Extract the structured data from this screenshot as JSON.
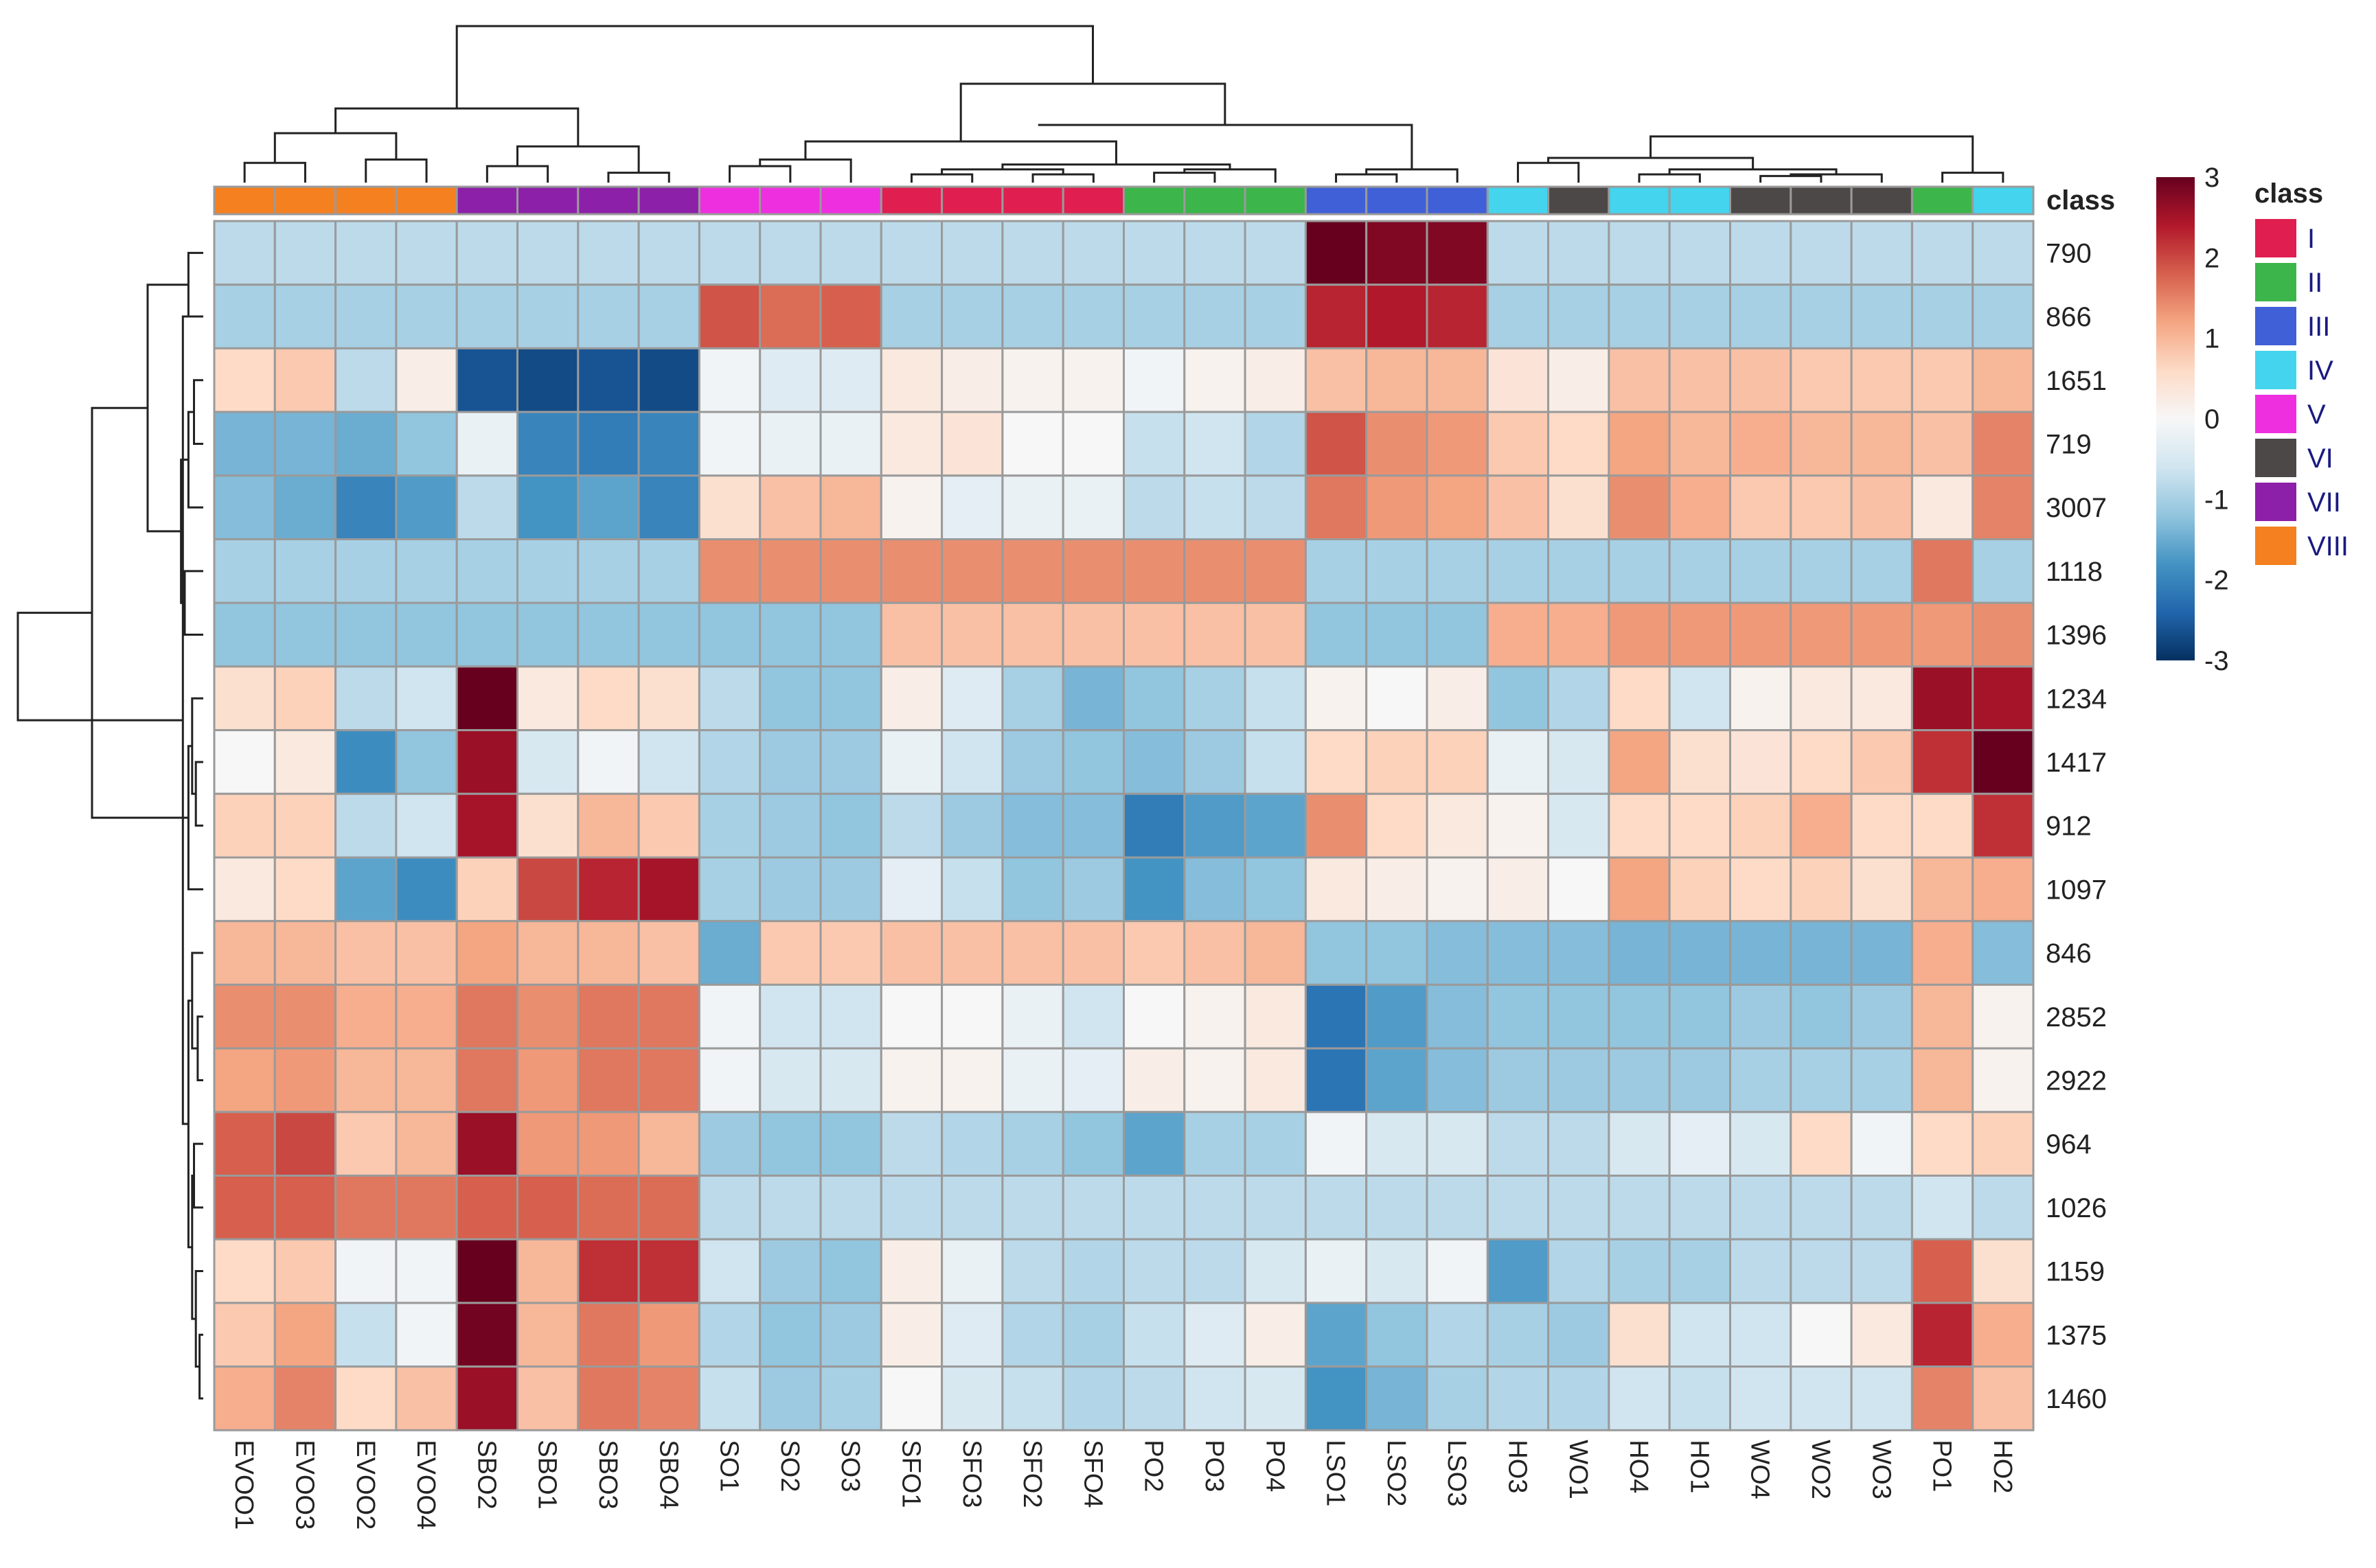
{
  "chart_data": {
    "type": "heatmap",
    "columns": [
      "EVOO1",
      "EVOO3",
      "EVOO2",
      "EVOO4",
      "SBO2",
      "SBO1",
      "SBO3",
      "SBO4",
      "SO1",
      "SO2",
      "SO3",
      "SFO1",
      "SFO3",
      "SFO2",
      "SFO4",
      "PO2",
      "PO3",
      "PO4",
      "LSO1",
      "LSO2",
      "LSO3",
      "HO3",
      "WO1",
      "HO4",
      "HO1",
      "WO4",
      "WO2",
      "WO3",
      "PO1",
      "HO2"
    ],
    "column_classes": [
      "VIII",
      "VIII",
      "VIII",
      "VIII",
      "VII",
      "VII",
      "VII",
      "VII",
      "V",
      "V",
      "V",
      "I",
      "I",
      "I",
      "I",
      "II",
      "II",
      "II",
      "III",
      "III",
      "III",
      "IV",
      "VI",
      "IV",
      "IV",
      "VI",
      "VI",
      "VI",
      "II",
      "IV"
    ],
    "rows": [
      "790",
      "866",
      "1651",
      "719",
      "3007",
      "1118",
      "1396",
      "1234",
      "1417",
      "912",
      "1097",
      "846",
      "2852",
      "2922",
      "964",
      "1026",
      "1159",
      "1375",
      "1460"
    ],
    "values": [
      [
        -0.8,
        -0.8,
        -0.8,
        -0.8,
        -0.8,
        -0.8,
        -0.8,
        -0.8,
        -0.8,
        -0.8,
        -0.8,
        -0.8,
        -0.8,
        -0.8,
        -0.8,
        -0.8,
        -0.8,
        -0.8,
        3.0,
        2.8,
        2.8,
        -0.8,
        -0.8,
        -0.8,
        -0.8,
        -0.8,
        -0.8,
        -0.8,
        -0.8,
        -0.8
      ],
      [
        -1.0,
        -1.0,
        -1.0,
        -1.0,
        -1.0,
        -1.0,
        -1.0,
        -1.0,
        1.9,
        1.7,
        1.8,
        -1.0,
        -1.0,
        -1.0,
        -1.0,
        -1.0,
        -1.0,
        -1.0,
        2.3,
        2.4,
        2.3,
        -1.0,
        -1.0,
        -1.0,
        -1.0,
        -1.0,
        -1.0,
        -1.0,
        -1.0,
        -1.0
      ],
      [
        0.6,
        0.8,
        -0.8,
        0.2,
        -2.6,
        -2.7,
        -2.6,
        -2.7,
        -0.1,
        -0.4,
        -0.4,
        0.3,
        0.2,
        0.1,
        0.1,
        -0.1,
        0.1,
        0.2,
        0.9,
        1.0,
        1.0,
        0.4,
        0.2,
        0.9,
        0.9,
        0.9,
        0.8,
        0.8,
        0.8,
        1.0
      ],
      [
        -1.4,
        -1.4,
        -1.5,
        -1.2,
        -0.2,
        -2.0,
        -2.1,
        -2.0,
        -0.1,
        -0.2,
        -0.2,
        0.3,
        0.4,
        0.0,
        0.0,
        -0.7,
        -0.6,
        -0.9,
        1.9,
        1.4,
        1.3,
        0.8,
        0.6,
        1.2,
        1.0,
        1.1,
        1.0,
        1.0,
        0.9,
        1.5
      ],
      [
        -1.3,
        -1.5,
        -2.0,
        -1.7,
        -0.8,
        -1.8,
        -1.6,
        -2.0,
        0.5,
        0.9,
        1.0,
        0.1,
        -0.3,
        -0.2,
        -0.2,
        -0.8,
        -0.7,
        -0.8,
        1.6,
        1.3,
        1.2,
        0.9,
        0.5,
        1.4,
        1.1,
        0.8,
        0.8,
        0.9,
        0.3,
        1.5
      ],
      [
        -1.0,
        -1.0,
        -1.0,
        -1.0,
        -1.0,
        -1.0,
        -1.0,
        -1.0,
        1.4,
        1.4,
        1.4,
        1.4,
        1.4,
        1.4,
        1.4,
        1.4,
        1.4,
        1.4,
        -1.0,
        -1.0,
        -1.0,
        -1.0,
        -1.0,
        -1.0,
        -1.0,
        -1.0,
        -1.0,
        -1.0,
        1.6,
        -1.0
      ],
      [
        -1.2,
        -1.2,
        -1.2,
        -1.2,
        -1.2,
        -1.2,
        -1.2,
        -1.2,
        -1.2,
        -1.2,
        -1.2,
        0.9,
        0.9,
        0.9,
        0.9,
        0.9,
        0.9,
        0.9,
        -1.2,
        -1.2,
        -1.2,
        1.1,
        1.1,
        1.3,
        1.3,
        1.3,
        1.3,
        1.3,
        1.3,
        1.4
      ],
      [
        0.5,
        0.7,
        -0.8,
        -0.6,
        3.0,
        0.3,
        0.6,
        0.5,
        -0.8,
        -1.2,
        -1.2,
        0.2,
        -0.4,
        -1.0,
        -1.4,
        -1.2,
        -1.0,
        -0.7,
        0.1,
        0.0,
        0.2,
        -1.2,
        -0.9,
        0.6,
        -0.6,
        0.1,
        0.3,
        0.3,
        2.6,
        2.5
      ],
      [
        0.0,
        0.3,
        -1.9,
        -1.2,
        2.6,
        -0.5,
        -0.1,
        -0.6,
        -0.9,
        -1.1,
        -1.1,
        -0.2,
        -0.6,
        -1.1,
        -1.2,
        -1.3,
        -1.1,
        -0.7,
        0.6,
        0.7,
        0.7,
        -0.2,
        -0.5,
        1.2,
        0.5,
        0.4,
        0.6,
        0.8,
        2.2,
        3.0
      ],
      [
        0.7,
        0.7,
        -0.8,
        -0.6,
        2.5,
        0.5,
        1.0,
        0.8,
        -1.0,
        -1.1,
        -1.2,
        -0.8,
        -1.1,
        -1.3,
        -1.3,
        -2.1,
        -1.7,
        -1.6,
        1.4,
        0.6,
        0.3,
        0.1,
        -0.5,
        0.6,
        0.6,
        0.7,
        1.1,
        0.6,
        0.6,
        2.2
      ],
      [
        0.3,
        0.6,
        -1.6,
        -1.9,
        0.7,
        2.0,
        2.3,
        2.5,
        -1.0,
        -1.1,
        -1.1,
        -0.3,
        -0.7,
        -1.2,
        -1.1,
        -1.8,
        -1.3,
        -1.2,
        0.3,
        0.2,
        0.1,
        0.2,
        0.0,
        1.2,
        0.7,
        0.6,
        0.7,
        0.5,
        1.0,
        1.1
      ],
      [
        1.0,
        1.0,
        0.9,
        0.9,
        1.2,
        1.0,
        1.0,
        0.9,
        -1.5,
        0.8,
        0.8,
        0.9,
        0.9,
        0.9,
        0.9,
        0.8,
        0.9,
        1.0,
        -1.2,
        -1.2,
        -1.3,
        -1.3,
        -1.3,
        -1.4,
        -1.4,
        -1.4,
        -1.4,
        -1.4,
        1.1,
        -1.3
      ],
      [
        1.4,
        1.4,
        1.1,
        1.1,
        1.6,
        1.4,
        1.6,
        1.6,
        -0.1,
        -0.6,
        -0.6,
        0.0,
        0.0,
        -0.2,
        -0.6,
        0.0,
        0.1,
        0.3,
        -2.2,
        -1.7,
        -1.3,
        -1.2,
        -1.2,
        -1.2,
        -1.2,
        -1.1,
        -1.2,
        -1.1,
        1.0,
        0.1
      ],
      [
        1.2,
        1.3,
        1.0,
        1.0,
        1.6,
        1.3,
        1.6,
        1.6,
        -0.1,
        -0.5,
        -0.5,
        0.1,
        0.1,
        -0.2,
        -0.3,
        0.2,
        0.1,
        0.3,
        -2.2,
        -1.6,
        -1.3,
        -1.1,
        -1.1,
        -1.1,
        -1.1,
        -1.0,
        -1.0,
        -1.0,
        1.0,
        0.1
      ],
      [
        1.8,
        2.0,
        0.8,
        1.0,
        2.6,
        1.3,
        1.3,
        1.0,
        -1.1,
        -1.2,
        -1.2,
        -0.8,
        -0.9,
        -1.0,
        -1.2,
        -1.6,
        -1.0,
        -1.0,
        -0.1,
        -0.5,
        -0.5,
        -0.8,
        -0.8,
        -0.5,
        -0.3,
        -0.5,
        0.6,
        -0.1,
        0.6,
        0.7
      ],
      [
        1.8,
        1.8,
        1.6,
        1.6,
        1.8,
        1.8,
        1.7,
        1.7,
        -0.8,
        -0.8,
        -0.8,
        -0.8,
        -0.8,
        -0.8,
        -0.8,
        -0.8,
        -0.8,
        -0.8,
        -0.8,
        -0.8,
        -0.8,
        -0.8,
        -0.8,
        -0.8,
        -0.8,
        -0.8,
        -0.8,
        -0.8,
        -0.6,
        -0.8
      ],
      [
        0.6,
        0.8,
        -0.1,
        -0.1,
        3.0,
        1.0,
        2.2,
        2.2,
        -0.6,
        -1.1,
        -1.2,
        0.2,
        -0.2,
        -0.8,
        -0.9,
        -0.8,
        -0.8,
        -0.5,
        -0.2,
        -0.5,
        -0.1,
        -1.7,
        -0.9,
        -1.0,
        -1.0,
        -0.8,
        -0.8,
        -0.8,
        1.8,
        0.5
      ],
      [
        0.8,
        1.2,
        -0.7,
        -0.1,
        2.9,
        1.0,
        1.6,
        1.3,
        -0.9,
        -1.2,
        -1.1,
        0.2,
        -0.4,
        -0.9,
        -1.0,
        -0.7,
        -0.4,
        0.2,
        -1.6,
        -1.2,
        -0.9,
        -1.0,
        -1.1,
        0.5,
        -0.6,
        -0.6,
        0.0,
        0.3,
        2.3,
        1.1
      ],
      [
        1.1,
        1.5,
        0.6,
        0.9,
        2.6,
        0.9,
        1.6,
        1.5,
        -0.7,
        -1.1,
        -1.0,
        0.0,
        -0.5,
        -0.7,
        -0.9,
        -0.8,
        -0.6,
        -0.5,
        -1.8,
        -1.4,
        -1.0,
        -0.9,
        -0.9,
        -0.6,
        -0.7,
        -0.6,
        -0.6,
        -0.6,
        1.5,
        0.9
      ]
    ],
    "colorbar": {
      "min": -3,
      "max": 3,
      "ticks": [
        "3",
        "2",
        "1",
        "0",
        "-1",
        "-2",
        "-3"
      ]
    },
    "annotation_title": "class",
    "legend": {
      "title": "class",
      "position": "right",
      "items": [
        {
          "label": "I",
          "color": "#e01e50"
        },
        {
          "label": "II",
          "color": "#3cb54a"
        },
        {
          "label": "III",
          "color": "#4060d8"
        },
        {
          "label": "IV",
          "color": "#44d4ee"
        },
        {
          "label": "V",
          "color": "#ee2fe0"
        },
        {
          "label": "VI",
          "color": "#4d4848"
        },
        {
          "label": "VII",
          "color": "#8c20a8"
        },
        {
          "label": "VIII",
          "color": "#f58020"
        }
      ]
    },
    "color_scale": [
      "#053061",
      "#2166ac",
      "#4393c3",
      "#92c5de",
      "#d1e5f0",
      "#f7f7f7",
      "#fddbc7",
      "#f4a582",
      "#d6604d",
      "#b2182b",
      "#67001f"
    ]
  }
}
